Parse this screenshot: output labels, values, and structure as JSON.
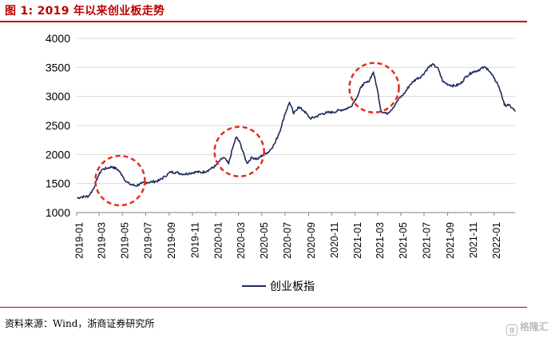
{
  "header": {
    "title": "图 1: 2019 年以来创业板走势"
  },
  "footer": {
    "source": "资料来源：Wind，浙商证券研究所"
  },
  "watermark": {
    "text": "格隆汇",
    "icon": "g"
  },
  "chart_data": {
    "type": "line",
    "title": "图 1: 2019 年以来创业板走势",
    "xlabel": "",
    "ylabel": "",
    "ylim": [
      1000,
      4000
    ],
    "yticks": [
      1000,
      1500,
      2000,
      2500,
      3000,
      3500,
      4000
    ],
    "xticks": [
      "2019-01",
      "2019-03",
      "2019-05",
      "2019-07",
      "2019-09",
      "2019-11",
      "2020-01",
      "2020-03",
      "2020-05",
      "2020-07",
      "2020-09",
      "2020-11",
      "2021-01",
      "2021-03",
      "2021-05",
      "2021-07",
      "2021-09",
      "2021-11",
      "2022-01"
    ],
    "grid": "horizontal",
    "legend_position": "bottom-center",
    "series": [
      {
        "name": "创业板指",
        "color": "#1f2a5c",
        "points": [
          [
            "2019-01-02",
            1250
          ],
          [
            "2019-01-15",
            1270
          ],
          [
            "2019-02-01",
            1280
          ],
          [
            "2019-02-15",
            1420
          ],
          [
            "2019-02-26",
            1620
          ],
          [
            "2019-03-08",
            1740
          ],
          [
            "2019-03-20",
            1760
          ],
          [
            "2019-04-04",
            1790
          ],
          [
            "2019-04-19",
            1740
          ],
          [
            "2019-04-30",
            1650
          ],
          [
            "2019-05-10",
            1540
          ],
          [
            "2019-05-20",
            1490
          ],
          [
            "2019-06-05",
            1460
          ],
          [
            "2019-06-20",
            1500
          ],
          [
            "2019-07-05",
            1520
          ],
          [
            "2019-07-20",
            1530
          ],
          [
            "2019-08-05",
            1550
          ],
          [
            "2019-08-20",
            1620
          ],
          [
            "2019-09-05",
            1700
          ],
          [
            "2019-09-20",
            1690
          ],
          [
            "2019-10-10",
            1660
          ],
          [
            "2019-10-25",
            1680
          ],
          [
            "2019-11-10",
            1700
          ],
          [
            "2019-11-25",
            1690
          ],
          [
            "2019-12-10",
            1720
          ],
          [
            "2019-12-31",
            1800
          ],
          [
            "2020-01-10",
            1880
          ],
          [
            "2020-01-22",
            1950
          ],
          [
            "2020-02-04",
            1840
          ],
          [
            "2020-02-14",
            2100
          ],
          [
            "2020-02-24",
            2300
          ],
          [
            "2020-03-05",
            2200
          ],
          [
            "2020-03-16",
            1980
          ],
          [
            "2020-03-23",
            1850
          ],
          [
            "2020-04-05",
            1950
          ],
          [
            "2020-04-20",
            1920
          ],
          [
            "2020-05-05",
            2000
          ],
          [
            "2020-05-20",
            2050
          ],
          [
            "2020-06-05",
            2200
          ],
          [
            "2020-06-20",
            2450
          ],
          [
            "2020-07-01",
            2700
          ],
          [
            "2020-07-13",
            2900
          ],
          [
            "2020-07-24",
            2700
          ],
          [
            "2020-08-05",
            2820
          ],
          [
            "2020-08-20",
            2750
          ],
          [
            "2020-09-05",
            2620
          ],
          [
            "2020-09-20",
            2650
          ],
          [
            "2020-10-05",
            2700
          ],
          [
            "2020-10-20",
            2720
          ],
          [
            "2020-11-05",
            2730
          ],
          [
            "2020-11-20",
            2760
          ],
          [
            "2020-12-05",
            2780
          ],
          [
            "2020-12-20",
            2820
          ],
          [
            "2021-01-05",
            2980
          ],
          [
            "2021-01-20",
            3200
          ],
          [
            "2021-02-05",
            3250
          ],
          [
            "2021-02-18",
            3420
          ],
          [
            "2021-03-01",
            3100
          ],
          [
            "2021-03-10",
            2750
          ],
          [
            "2021-03-25",
            2700
          ],
          [
            "2021-04-10",
            2800
          ],
          [
            "2021-04-25",
            2950
          ],
          [
            "2021-05-10",
            3050
          ],
          [
            "2021-05-25",
            3200
          ],
          [
            "2021-06-10",
            3300
          ],
          [
            "2021-06-25",
            3350
          ],
          [
            "2021-07-10",
            3480
          ],
          [
            "2021-07-22",
            3550
          ],
          [
            "2021-08-05",
            3500
          ],
          [
            "2021-08-20",
            3250
          ],
          [
            "2021-09-05",
            3200
          ],
          [
            "2021-09-20",
            3180
          ],
          [
            "2021-10-05",
            3220
          ],
          [
            "2021-10-20",
            3350
          ],
          [
            "2021-11-05",
            3420
          ],
          [
            "2021-11-20",
            3450
          ],
          [
            "2021-12-05",
            3500
          ],
          [
            "2021-12-15",
            3480
          ],
          [
            "2021-12-31",
            3320
          ],
          [
            "2022-01-10",
            3220
          ],
          [
            "2022-01-20",
            3050
          ],
          [
            "2022-01-28",
            2850
          ],
          [
            "2022-02-08",
            2850
          ],
          [
            "2022-02-18",
            2800
          ],
          [
            "2022-02-25",
            2740
          ]
        ]
      }
    ],
    "highlights": [
      {
        "center": [
          "2019-04-25",
          1550
        ],
        "shape": "dashed-circle",
        "color": "#e0301e"
      },
      {
        "center": [
          "2020-03-03",
          2050
        ],
        "shape": "dashed-circle",
        "color": "#e0301e"
      },
      {
        "center": [
          "2021-02-20",
          3150
        ],
        "shape": "dashed-circle",
        "color": "#e0301e"
      }
    ]
  }
}
